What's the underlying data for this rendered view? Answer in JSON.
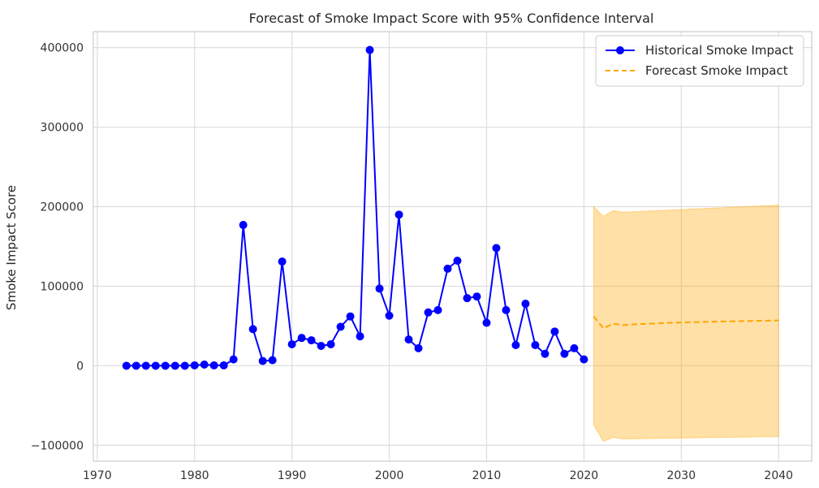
{
  "chart_data": {
    "type": "line",
    "title": "Forecast of Smoke Impact Score with 95% Confidence Interval",
    "xlabel": "",
    "ylabel": "Smoke Impact Score",
    "xlim": [
      1969.6,
      2043.4
    ],
    "ylim": [
      -120000,
      420000
    ],
    "x_ticks": [
      1970,
      1980,
      1990,
      2000,
      2010,
      2020,
      2030,
      2040
    ],
    "y_ticks": [
      -100000,
      0,
      100000,
      200000,
      300000,
      400000
    ],
    "y_tick_labels": [
      "−100000",
      "0",
      "100000",
      "200000",
      "300000",
      "400000"
    ],
    "grid": true,
    "legend_position": "top-right",
    "series": [
      {
        "name": "Historical Smoke Impact",
        "style": "solid-with-markers",
        "color": "#0000ff",
        "x": [
          1973,
          1974,
          1975,
          1976,
          1977,
          1978,
          1979,
          1980,
          1981,
          1982,
          1983,
          1984,
          1985,
          1986,
          1987,
          1988,
          1989,
          1990,
          1991,
          1992,
          1993,
          1994,
          1995,
          1996,
          1997,
          1998,
          1999,
          2000,
          2001,
          2002,
          2003,
          2004,
          2005,
          2006,
          2007,
          2008,
          2009,
          2010,
          2011,
          2012,
          2013,
          2014,
          2015,
          2016,
          2017,
          2018,
          2019,
          2020
        ],
        "values": [
          0,
          0,
          0,
          0,
          0,
          0,
          0,
          500,
          1500,
          500,
          500,
          8000,
          177000,
          46000,
          6000,
          7000,
          131000,
          27000,
          35000,
          32000,
          25000,
          27000,
          49000,
          62000,
          37000,
          397000,
          97000,
          63000,
          190000,
          33000,
          22000,
          67000,
          70000,
          122000,
          132000,
          85000,
          87000,
          54000,
          148000,
          70000,
          26000,
          78000,
          26000,
          15000,
          43000,
          15000,
          22000,
          8000
        ]
      },
      {
        "name": "Forecast Smoke Impact",
        "style": "dashed",
        "color": "#ffa500",
        "x": [
          2021,
          2022,
          2023,
          2024,
          2025,
          2026,
          2027,
          2028,
          2029,
          2030,
          2031,
          2032,
          2033,
          2034,
          2035,
          2036,
          2037,
          2038,
          2039,
          2040
        ],
        "values": [
          62000,
          47000,
          53000,
          51000,
          52000,
          52500,
          53000,
          53500,
          54000,
          54500,
          54800,
          55000,
          55300,
          55600,
          55900,
          56100,
          56300,
          56500,
          56700,
          57000
        ]
      }
    ],
    "confidence_band": {
      "color": "#ffa500",
      "opacity": 0.35,
      "x": [
        2021,
        2022,
        2023,
        2024,
        2040
      ],
      "lower": [
        -75000,
        -95000,
        -90000,
        -92000,
        -89000
      ],
      "upper": [
        200000,
        188000,
        195000,
        193000,
        202000
      ]
    }
  }
}
